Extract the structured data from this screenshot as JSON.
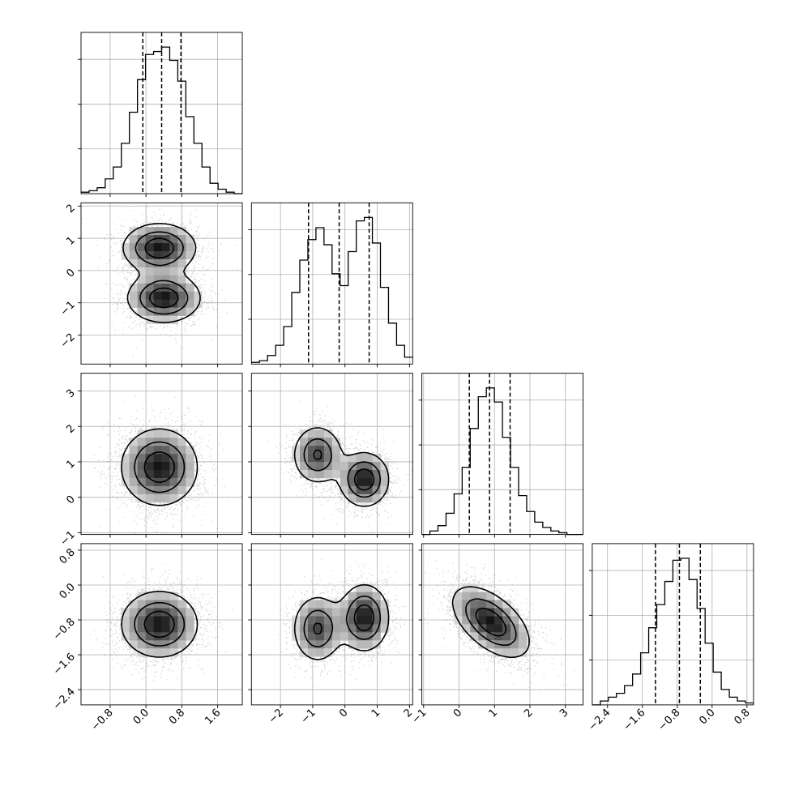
{
  "chart_data": {
    "type": "corner",
    "grid": true,
    "n_params": 4,
    "param_labels": [
      "",
      "",
      "",
      ""
    ],
    "quantile_levels": [
      0.16,
      0.5,
      0.84
    ],
    "params": [
      {
        "range": [
          -1.45,
          2.15
        ],
        "ticks": [
          -0.8,
          0.0,
          0.8,
          1.6
        ],
        "tick_labels": [
          "−0.8",
          "0.0",
          "0.8",
          "1.6"
        ],
        "quantiles": [
          -0.07,
          0.35,
          0.78
        ]
      },
      {
        "range": [
          -2.9,
          2.1
        ],
        "ticks": [
          -2,
          -1,
          0,
          1,
          2
        ],
        "tick_labels": [
          "−2",
          "−1",
          "0",
          "1",
          "2"
        ],
        "quantiles": [
          -1.13,
          -0.18,
          0.75
        ]
      },
      {
        "range": [
          -1.05,
          3.5
        ],
        "ticks": [
          -1,
          0,
          1,
          2,
          3
        ],
        "tick_labels": [
          "−1",
          "0",
          "1",
          "2",
          "3"
        ],
        "quantiles": [
          0.29,
          0.86,
          1.44
        ]
      },
      {
        "range": [
          -2.75,
          0.95
        ],
        "ticks": [
          -2.4,
          -1.6,
          -0.8,
          0.0,
          0.8
        ],
        "tick_labels": [
          "−2.4",
          "−1.6",
          "−0.8",
          "0.0",
          "0.8"
        ],
        "quantiles": [
          -1.3,
          -0.75,
          -0.27
        ]
      }
    ],
    "histograms_1d": [
      {
        "edges": [
          -1.45,
          -1.27,
          -1.09,
          -0.91,
          -0.73,
          -0.55,
          -0.37,
          -0.19,
          -0.01,
          0.17,
          0.35,
          0.53,
          0.71,
          0.89,
          1.07,
          1.25,
          1.43,
          1.61,
          1.79,
          1.97,
          2.15
        ],
        "counts": [
          1,
          2,
          4,
          10,
          18,
          34,
          55,
          77,
          94,
          96,
          99,
          90,
          76,
          52,
          34,
          18,
          7,
          3,
          1,
          0
        ]
      },
      {
        "edges": [
          -2.9,
          -2.65,
          -2.4,
          -2.15,
          -1.9,
          -1.65,
          -1.4,
          -1.15,
          -0.9,
          -0.65,
          -0.4,
          -0.15,
          0.1,
          0.35,
          0.6,
          0.85,
          1.1,
          1.35,
          1.6,
          1.85,
          2.1
        ],
        "counts": [
          1,
          2,
          5,
          11,
          22,
          42,
          61,
          73,
          80,
          70,
          53,
          46,
          66,
          84,
          86,
          71,
          45,
          24,
          11,
          4
        ]
      },
      {
        "edges": [
          -1.05,
          -0.8225,
          -0.595,
          -0.3675,
          -0.14,
          0.0875,
          0.315,
          0.5425,
          0.77,
          0.9975,
          1.225,
          1.4525,
          1.68,
          1.9075,
          2.135,
          2.3625,
          2.59,
          2.8175,
          3.045,
          3.2725,
          3.5
        ],
        "counts": [
          0,
          2,
          5,
          12,
          23,
          38,
          60,
          78,
          83,
          75,
          55,
          38,
          22,
          13,
          7,
          4,
          2,
          1,
          0,
          0
        ]
      },
      {
        "edges": [
          -2.75,
          -2.565,
          -2.38,
          -2.195,
          -2.01,
          -1.825,
          -1.64,
          -1.455,
          -1.27,
          -1.085,
          -0.9,
          -0.715,
          -0.53,
          -0.345,
          -0.16,
          0.025,
          0.21,
          0.395,
          0.58,
          0.765,
          0.95
        ],
        "counts": [
          0,
          2,
          4,
          6,
          10,
          16,
          27,
          40,
          52,
          64,
          75,
          76,
          65,
          50,
          32,
          17,
          8,
          4,
          2,
          1
        ]
      }
    ],
    "densities_2d": [
      {
        "row": 1,
        "col": 0,
        "modes": [
          {
            "w": 0.5,
            "mx": 0.3,
            "my": 0.7,
            "sx": 0.45,
            "sy": 0.42,
            "rho": 0.0
          },
          {
            "w": 0.5,
            "mx": 0.4,
            "my": -0.85,
            "sx": 0.45,
            "sy": 0.42,
            "rho": 0.0
          }
        ]
      },
      {
        "row": 2,
        "col": 0,
        "modes": [
          {
            "w": 1.0,
            "mx": 0.3,
            "my": 0.85,
            "sx": 0.47,
            "sy": 0.6,
            "rho": 0.0
          }
        ]
      },
      {
        "row": 2,
        "col": 1,
        "modes": [
          {
            "w": 0.45,
            "mx": -0.85,
            "my": 1.2,
            "sx": 0.42,
            "sy": 0.45,
            "rho": 0.0
          },
          {
            "w": 0.55,
            "mx": 0.6,
            "my": 0.5,
            "sx": 0.42,
            "sy": 0.42,
            "rho": 0.0
          }
        ]
      },
      {
        "row": 3,
        "col": 0,
        "modes": [
          {
            "w": 1.0,
            "mx": 0.3,
            "my": -0.9,
            "sx": 0.47,
            "sy": 0.42,
            "rho": 0.0
          }
        ]
      },
      {
        "row": 3,
        "col": 1,
        "modes": [
          {
            "w": 0.45,
            "mx": -0.85,
            "my": -1.0,
            "sx": 0.42,
            "sy": 0.42,
            "rho": 0.0
          },
          {
            "w": 0.55,
            "mx": 0.6,
            "my": -0.75,
            "sx": 0.42,
            "sy": 0.42,
            "rho": 0.0
          }
        ]
      },
      {
        "row": 3,
        "col": 2,
        "modes": [
          {
            "w": 1.0,
            "mx": 0.9,
            "my": -0.85,
            "sx": 0.6,
            "sy": 0.45,
            "rho": -0.55
          }
        ]
      }
    ]
  },
  "colors": {
    "axis": "#000000",
    "grid": "#b0b0b0",
    "scatter": "#9a9a9a",
    "density_ramp": [
      "#ffffff",
      "#000000"
    ],
    "contour": "#000000"
  }
}
